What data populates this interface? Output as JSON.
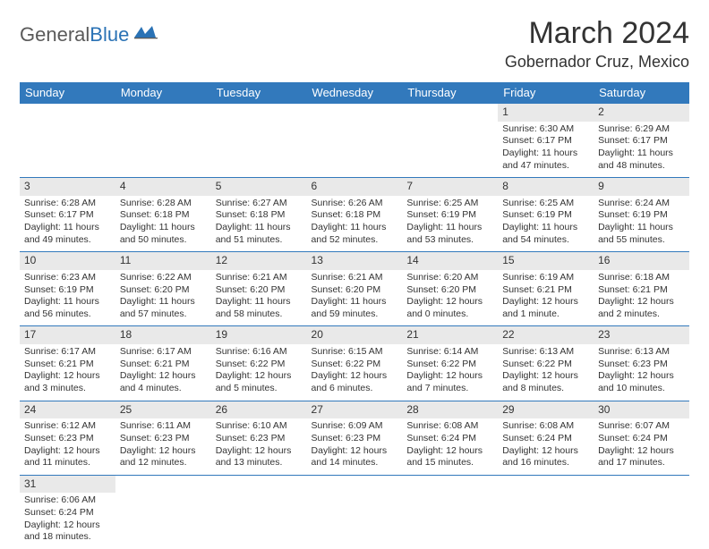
{
  "brand": {
    "part1": "General",
    "part2": "Blue"
  },
  "title": "March 2024",
  "location": "Gobernador Cruz, Mexico",
  "colors": {
    "header_bg": "#3279bc",
    "header_text": "#ffffff",
    "daynum_bg": "#e9e9e9",
    "border": "#3279bc",
    "text": "#333333",
    "brand_gray": "#5a5a5a",
    "brand_blue": "#2a72b5",
    "page_bg": "#ffffff"
  },
  "weekdays": [
    "Sunday",
    "Monday",
    "Tuesday",
    "Wednesday",
    "Thursday",
    "Friday",
    "Saturday"
  ],
  "grid": [
    [
      {
        "blank": true
      },
      {
        "blank": true
      },
      {
        "blank": true
      },
      {
        "blank": true
      },
      {
        "blank": true
      },
      {
        "n": "1",
        "sr": "Sunrise: 6:30 AM",
        "ss": "Sunset: 6:17 PM",
        "d1": "Daylight: 11 hours",
        "d2": "and 47 minutes."
      },
      {
        "n": "2",
        "sr": "Sunrise: 6:29 AM",
        "ss": "Sunset: 6:17 PM",
        "d1": "Daylight: 11 hours",
        "d2": "and 48 minutes."
      }
    ],
    [
      {
        "n": "3",
        "sr": "Sunrise: 6:28 AM",
        "ss": "Sunset: 6:17 PM",
        "d1": "Daylight: 11 hours",
        "d2": "and 49 minutes."
      },
      {
        "n": "4",
        "sr": "Sunrise: 6:28 AM",
        "ss": "Sunset: 6:18 PM",
        "d1": "Daylight: 11 hours",
        "d2": "and 50 minutes."
      },
      {
        "n": "5",
        "sr": "Sunrise: 6:27 AM",
        "ss": "Sunset: 6:18 PM",
        "d1": "Daylight: 11 hours",
        "d2": "and 51 minutes."
      },
      {
        "n": "6",
        "sr": "Sunrise: 6:26 AM",
        "ss": "Sunset: 6:18 PM",
        "d1": "Daylight: 11 hours",
        "d2": "and 52 minutes."
      },
      {
        "n": "7",
        "sr": "Sunrise: 6:25 AM",
        "ss": "Sunset: 6:19 PM",
        "d1": "Daylight: 11 hours",
        "d2": "and 53 minutes."
      },
      {
        "n": "8",
        "sr": "Sunrise: 6:25 AM",
        "ss": "Sunset: 6:19 PM",
        "d1": "Daylight: 11 hours",
        "d2": "and 54 minutes."
      },
      {
        "n": "9",
        "sr": "Sunrise: 6:24 AM",
        "ss": "Sunset: 6:19 PM",
        "d1": "Daylight: 11 hours",
        "d2": "and 55 minutes."
      }
    ],
    [
      {
        "n": "10",
        "sr": "Sunrise: 6:23 AM",
        "ss": "Sunset: 6:19 PM",
        "d1": "Daylight: 11 hours",
        "d2": "and 56 minutes."
      },
      {
        "n": "11",
        "sr": "Sunrise: 6:22 AM",
        "ss": "Sunset: 6:20 PM",
        "d1": "Daylight: 11 hours",
        "d2": "and 57 minutes."
      },
      {
        "n": "12",
        "sr": "Sunrise: 6:21 AM",
        "ss": "Sunset: 6:20 PM",
        "d1": "Daylight: 11 hours",
        "d2": "and 58 minutes."
      },
      {
        "n": "13",
        "sr": "Sunrise: 6:21 AM",
        "ss": "Sunset: 6:20 PM",
        "d1": "Daylight: 11 hours",
        "d2": "and 59 minutes."
      },
      {
        "n": "14",
        "sr": "Sunrise: 6:20 AM",
        "ss": "Sunset: 6:20 PM",
        "d1": "Daylight: 12 hours",
        "d2": "and 0 minutes."
      },
      {
        "n": "15",
        "sr": "Sunrise: 6:19 AM",
        "ss": "Sunset: 6:21 PM",
        "d1": "Daylight: 12 hours",
        "d2": "and 1 minute."
      },
      {
        "n": "16",
        "sr": "Sunrise: 6:18 AM",
        "ss": "Sunset: 6:21 PM",
        "d1": "Daylight: 12 hours",
        "d2": "and 2 minutes."
      }
    ],
    [
      {
        "n": "17",
        "sr": "Sunrise: 6:17 AM",
        "ss": "Sunset: 6:21 PM",
        "d1": "Daylight: 12 hours",
        "d2": "and 3 minutes."
      },
      {
        "n": "18",
        "sr": "Sunrise: 6:17 AM",
        "ss": "Sunset: 6:21 PM",
        "d1": "Daylight: 12 hours",
        "d2": "and 4 minutes."
      },
      {
        "n": "19",
        "sr": "Sunrise: 6:16 AM",
        "ss": "Sunset: 6:22 PM",
        "d1": "Daylight: 12 hours",
        "d2": "and 5 minutes."
      },
      {
        "n": "20",
        "sr": "Sunrise: 6:15 AM",
        "ss": "Sunset: 6:22 PM",
        "d1": "Daylight: 12 hours",
        "d2": "and 6 minutes."
      },
      {
        "n": "21",
        "sr": "Sunrise: 6:14 AM",
        "ss": "Sunset: 6:22 PM",
        "d1": "Daylight: 12 hours",
        "d2": "and 7 minutes."
      },
      {
        "n": "22",
        "sr": "Sunrise: 6:13 AM",
        "ss": "Sunset: 6:22 PM",
        "d1": "Daylight: 12 hours",
        "d2": "and 8 minutes."
      },
      {
        "n": "23",
        "sr": "Sunrise: 6:13 AM",
        "ss": "Sunset: 6:23 PM",
        "d1": "Daylight: 12 hours",
        "d2": "and 10 minutes."
      }
    ],
    [
      {
        "n": "24",
        "sr": "Sunrise: 6:12 AM",
        "ss": "Sunset: 6:23 PM",
        "d1": "Daylight: 12 hours",
        "d2": "and 11 minutes."
      },
      {
        "n": "25",
        "sr": "Sunrise: 6:11 AM",
        "ss": "Sunset: 6:23 PM",
        "d1": "Daylight: 12 hours",
        "d2": "and 12 minutes."
      },
      {
        "n": "26",
        "sr": "Sunrise: 6:10 AM",
        "ss": "Sunset: 6:23 PM",
        "d1": "Daylight: 12 hours",
        "d2": "and 13 minutes."
      },
      {
        "n": "27",
        "sr": "Sunrise: 6:09 AM",
        "ss": "Sunset: 6:23 PM",
        "d1": "Daylight: 12 hours",
        "d2": "and 14 minutes."
      },
      {
        "n": "28",
        "sr": "Sunrise: 6:08 AM",
        "ss": "Sunset: 6:24 PM",
        "d1": "Daylight: 12 hours",
        "d2": "and 15 minutes."
      },
      {
        "n": "29",
        "sr": "Sunrise: 6:08 AM",
        "ss": "Sunset: 6:24 PM",
        "d1": "Daylight: 12 hours",
        "d2": "and 16 minutes."
      },
      {
        "n": "30",
        "sr": "Sunrise: 6:07 AM",
        "ss": "Sunset: 6:24 PM",
        "d1": "Daylight: 12 hours",
        "d2": "and 17 minutes."
      }
    ],
    [
      {
        "n": "31",
        "sr": "Sunrise: 6:06 AM",
        "ss": "Sunset: 6:24 PM",
        "d1": "Daylight: 12 hours",
        "d2": "and 18 minutes."
      },
      {
        "blank": true
      },
      {
        "blank": true
      },
      {
        "blank": true
      },
      {
        "blank": true
      },
      {
        "blank": true
      },
      {
        "blank": true
      }
    ]
  ]
}
